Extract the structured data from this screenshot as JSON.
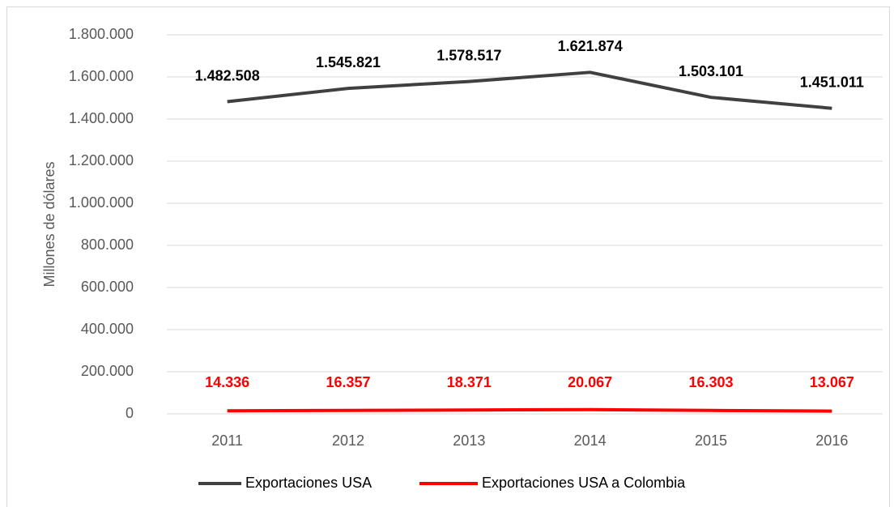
{
  "chart_data": {
    "type": "line",
    "y_label": "Millones de dólares",
    "categories": [
      "2011",
      "2012",
      "2013",
      "2014",
      "2015",
      "2016"
    ],
    "series": [
      {
        "name": "Exportaciones USA",
        "color": "#404040",
        "values": [
          1482508,
          1545821,
          1578517,
          1621874,
          1503101,
          1451011
        ],
        "value_labels": [
          "1.482.508",
          "1.545.821",
          "1.578.517",
          "1.621.874",
          "1.503.101",
          "1.451.011"
        ]
      },
      {
        "name": "Exportaciones USA a Colombia",
        "color": "#ff0000",
        "values": [
          14336,
          16357,
          18371,
          20067,
          16303,
          13067
        ],
        "value_labels": [
          "14.336",
          "16.357",
          "18.371",
          "20.067",
          "16.303",
          "13.067"
        ]
      }
    ],
    "ylim": [
      0,
      1800000
    ],
    "yticks": [
      0,
      {
        "value": 200000,
        "label": "200.000"
      },
      {
        "value": 400000,
        "label": "400.000"
      },
      {
        "value": 600000,
        "label": "600.000"
      },
      {
        "value": 800000,
        "label": "800.000"
      },
      {
        "value": 1000000,
        "label": "1.000.000"
      },
      {
        "value": 1200000,
        "label": "1.200.000"
      },
      {
        "value": 1400000,
        "label": "1.400.000"
      },
      {
        "value": 1600000,
        "label": "1.600.000"
      },
      {
        "value": 1800000,
        "label": "1.800.000"
      }
    ],
    "grid": true,
    "legend": "bottom"
  }
}
